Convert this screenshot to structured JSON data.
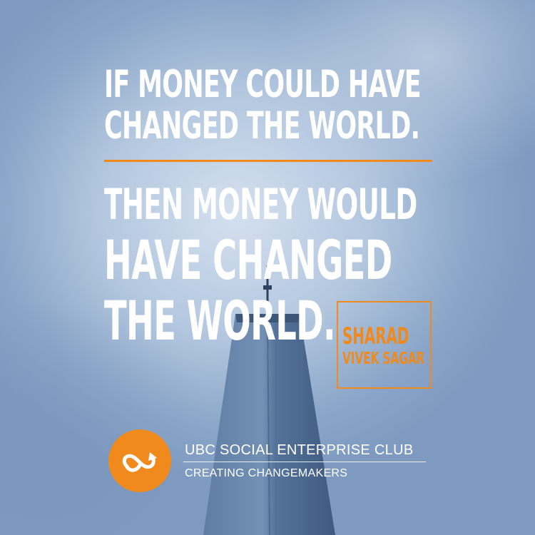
{
  "quote": {
    "line1": "IF MONEY COULD HAVE",
    "line2": "CHANGED THE WORLD.",
    "line3": "THEN MONEY WOULD",
    "line4": "HAVE CHANGED",
    "line5": "THE WORLD."
  },
  "author": {
    "first": "SHARAD",
    "rest": "VIVEK SAGAR"
  },
  "organization": {
    "name": "UBC SOCIAL ENTERPRISE CLUB",
    "tagline": "CREATING CHANGEMAKERS",
    "logo_icon": "infinity-arrow-icon"
  },
  "colors": {
    "accent": "#f08a1c",
    "text": "#ffffff",
    "sky": "#9db4d3",
    "tower": "#4f6d93"
  }
}
